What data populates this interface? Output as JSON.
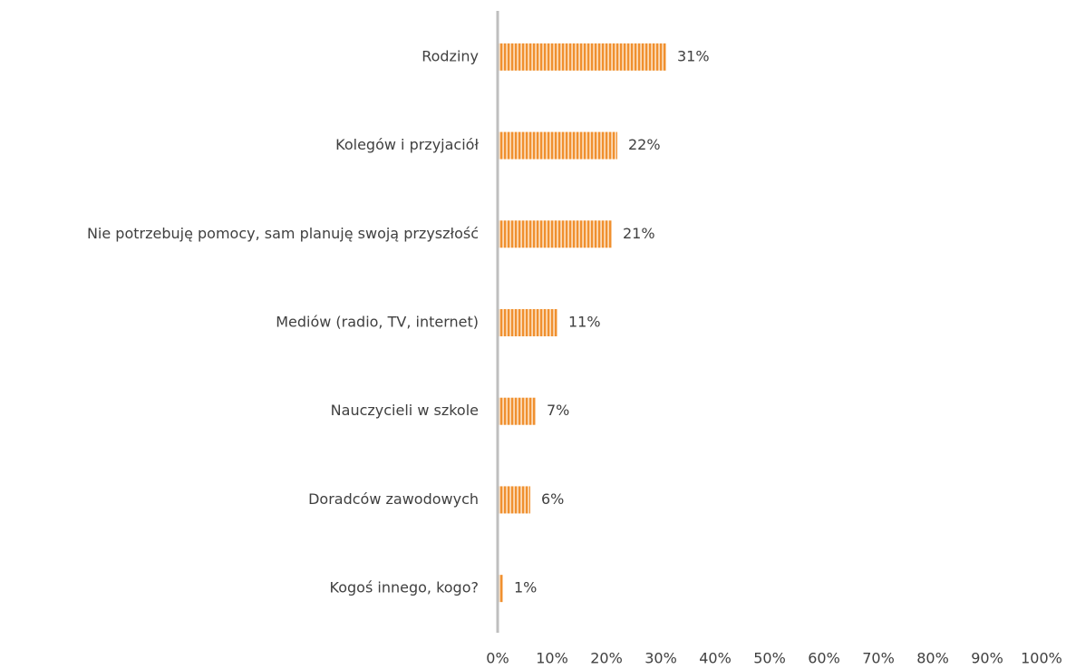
{
  "chart_data": {
    "type": "bar",
    "orientation": "horizontal",
    "categories": [
      "Rodziny",
      "Kolegów i przyjaciół",
      "Nie potrzebuję pomocy, sam planuję swoją przyszłość",
      "Mediów (radio, TV, internet)",
      "Nauczycieli w szkole",
      "Doradców zawodowych",
      "Kogoś innego, kogo?"
    ],
    "values": [
      31,
      22,
      21,
      11,
      7,
      6,
      1
    ],
    "value_labels": [
      "31%",
      "22%",
      "21%",
      "11%",
      "7%",
      "6%",
      "1%"
    ],
    "color": "#f0902f",
    "xlim": [
      0,
      100
    ],
    "xticks": [
      {
        "value": 0,
        "label": "0%"
      },
      {
        "value": 10,
        "label": "10%"
      },
      {
        "value": 20,
        "label": "20%"
      },
      {
        "value": 30,
        "label": "30%"
      },
      {
        "value": 40,
        "label": "40%"
      },
      {
        "value": 50,
        "label": "50%"
      },
      {
        "value": 60,
        "label": "60%"
      },
      {
        "value": 70,
        "label": "70%"
      },
      {
        "value": 80,
        "label": "80%"
      },
      {
        "value": 90,
        "label": "90%"
      },
      {
        "value": 100,
        "label": "100%"
      }
    ],
    "grid": false
  }
}
